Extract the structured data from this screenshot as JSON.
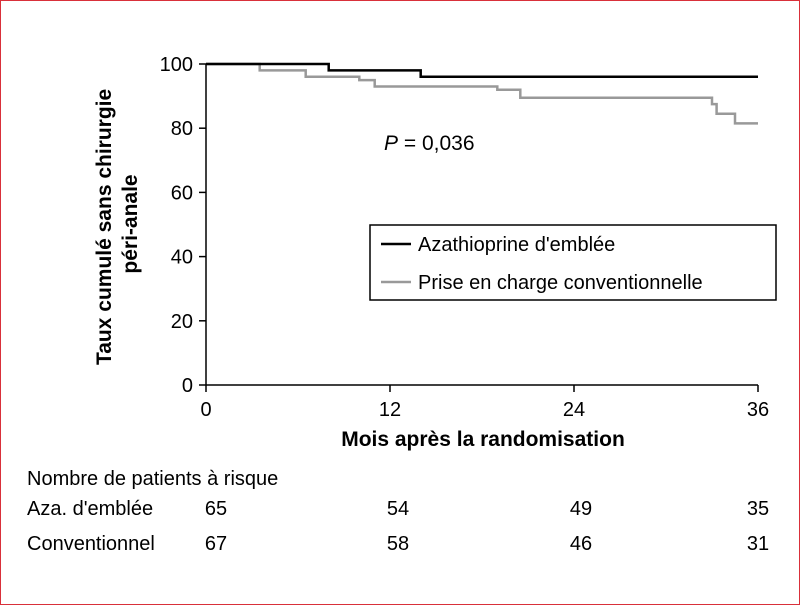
{
  "chart_data": {
    "type": "line",
    "ylabel_lines": [
      "Taux cumulé sans chirurgie",
      "péri-anale"
    ],
    "xlabel": "Mois après la randomisation",
    "xlim": [
      0,
      36
    ],
    "ylim": [
      0,
      100
    ],
    "x_ticks": [
      "0",
      "12",
      "24",
      "36"
    ],
    "y_ticks": [
      "0",
      "20",
      "40",
      "60",
      "80",
      "100"
    ],
    "annotation": {
      "italic": "P",
      "rest": " = 0,036"
    },
    "legend_position": "center-right",
    "series": [
      {
        "name": "Azathioprine d'emblée",
        "color": "#000000",
        "step": true,
        "points": [
          [
            0,
            100
          ],
          [
            8,
            100
          ],
          [
            8,
            98
          ],
          [
            14,
            98
          ],
          [
            14,
            96
          ],
          [
            36,
            96
          ]
        ]
      },
      {
        "name": "Prise en charge conventionnelle",
        "color": "#999999",
        "step": true,
        "points": [
          [
            0,
            100
          ],
          [
            3.5,
            100
          ],
          [
            3.5,
            98
          ],
          [
            6.5,
            98
          ],
          [
            6.5,
            96
          ],
          [
            10,
            96
          ],
          [
            10,
            95
          ],
          [
            11,
            95
          ],
          [
            11,
            93
          ],
          [
            19,
            93
          ],
          [
            19,
            92
          ],
          [
            20.5,
            92
          ],
          [
            20.5,
            89.5
          ],
          [
            33,
            89.5
          ],
          [
            33,
            87.5
          ],
          [
            33.3,
            87.5
          ],
          [
            33.3,
            84.5
          ],
          [
            34.5,
            84.5
          ],
          [
            34.5,
            81.5
          ],
          [
            36,
            81.5
          ]
        ]
      }
    ],
    "risk_table": {
      "title": "Nombre de patients à risque",
      "rows": [
        {
          "label": "Aza. d'emblée",
          "values": [
            65,
            54,
            49,
            35
          ]
        },
        {
          "label": "Conventionnel",
          "values": [
            67,
            58,
            46,
            31
          ]
        }
      ]
    }
  }
}
